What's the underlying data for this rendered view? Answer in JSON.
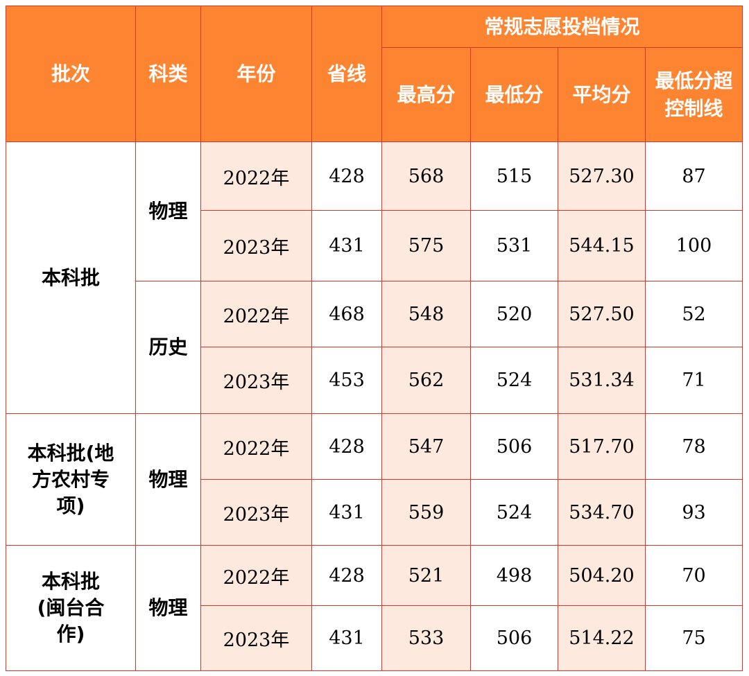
{
  "headers": {
    "batch": "批次",
    "category": "科类",
    "year": "年份",
    "provincial_line": "省线",
    "group": "常规志愿投档情况",
    "max_score": "最高分",
    "min_score": "最低分",
    "avg_score": "平均分",
    "over_line": "最低分超控制线"
  },
  "groups": [
    {
      "batch": "本科批",
      "subgroups": [
        {
          "category": "物理",
          "rows": [
            {
              "year": "2022年",
              "line": "428",
              "max": "568",
              "min": "515",
              "avg": "527.30",
              "over": "87"
            },
            {
              "year": "2023年",
              "line": "431",
              "max": "575",
              "min": "531",
              "avg": "544.15",
              "over": "100"
            }
          ]
        },
        {
          "category": "历史",
          "rows": [
            {
              "year": "2022年",
              "line": "468",
              "max": "548",
              "min": "520",
              "avg": "527.50",
              "over": "52"
            },
            {
              "year": "2023年",
              "line": "453",
              "max": "562",
              "min": "524",
              "avg": "531.34",
              "over": "71"
            }
          ]
        }
      ]
    },
    {
      "batch": "本科批(地方农村专项)",
      "subgroups": [
        {
          "category": "物理",
          "rows": [
            {
              "year": "2022年",
              "line": "428",
              "max": "547",
              "min": "506",
              "avg": "517.70",
              "over": "78"
            },
            {
              "year": "2023年",
              "line": "431",
              "max": "559",
              "min": "524",
              "avg": "534.70",
              "over": "93"
            }
          ]
        }
      ]
    },
    {
      "batch": "本科批(闽台合作)",
      "subgroups": [
        {
          "category": "物理",
          "rows": [
            {
              "year": "2022年",
              "line": "428",
              "max": "521",
              "min": "498",
              "avg": "504.20",
              "over": "70"
            },
            {
              "year": "2023年",
              "line": "431",
              "max": "533",
              "min": "506",
              "avg": "514.22",
              "over": "75"
            }
          ]
        }
      ]
    }
  ]
}
